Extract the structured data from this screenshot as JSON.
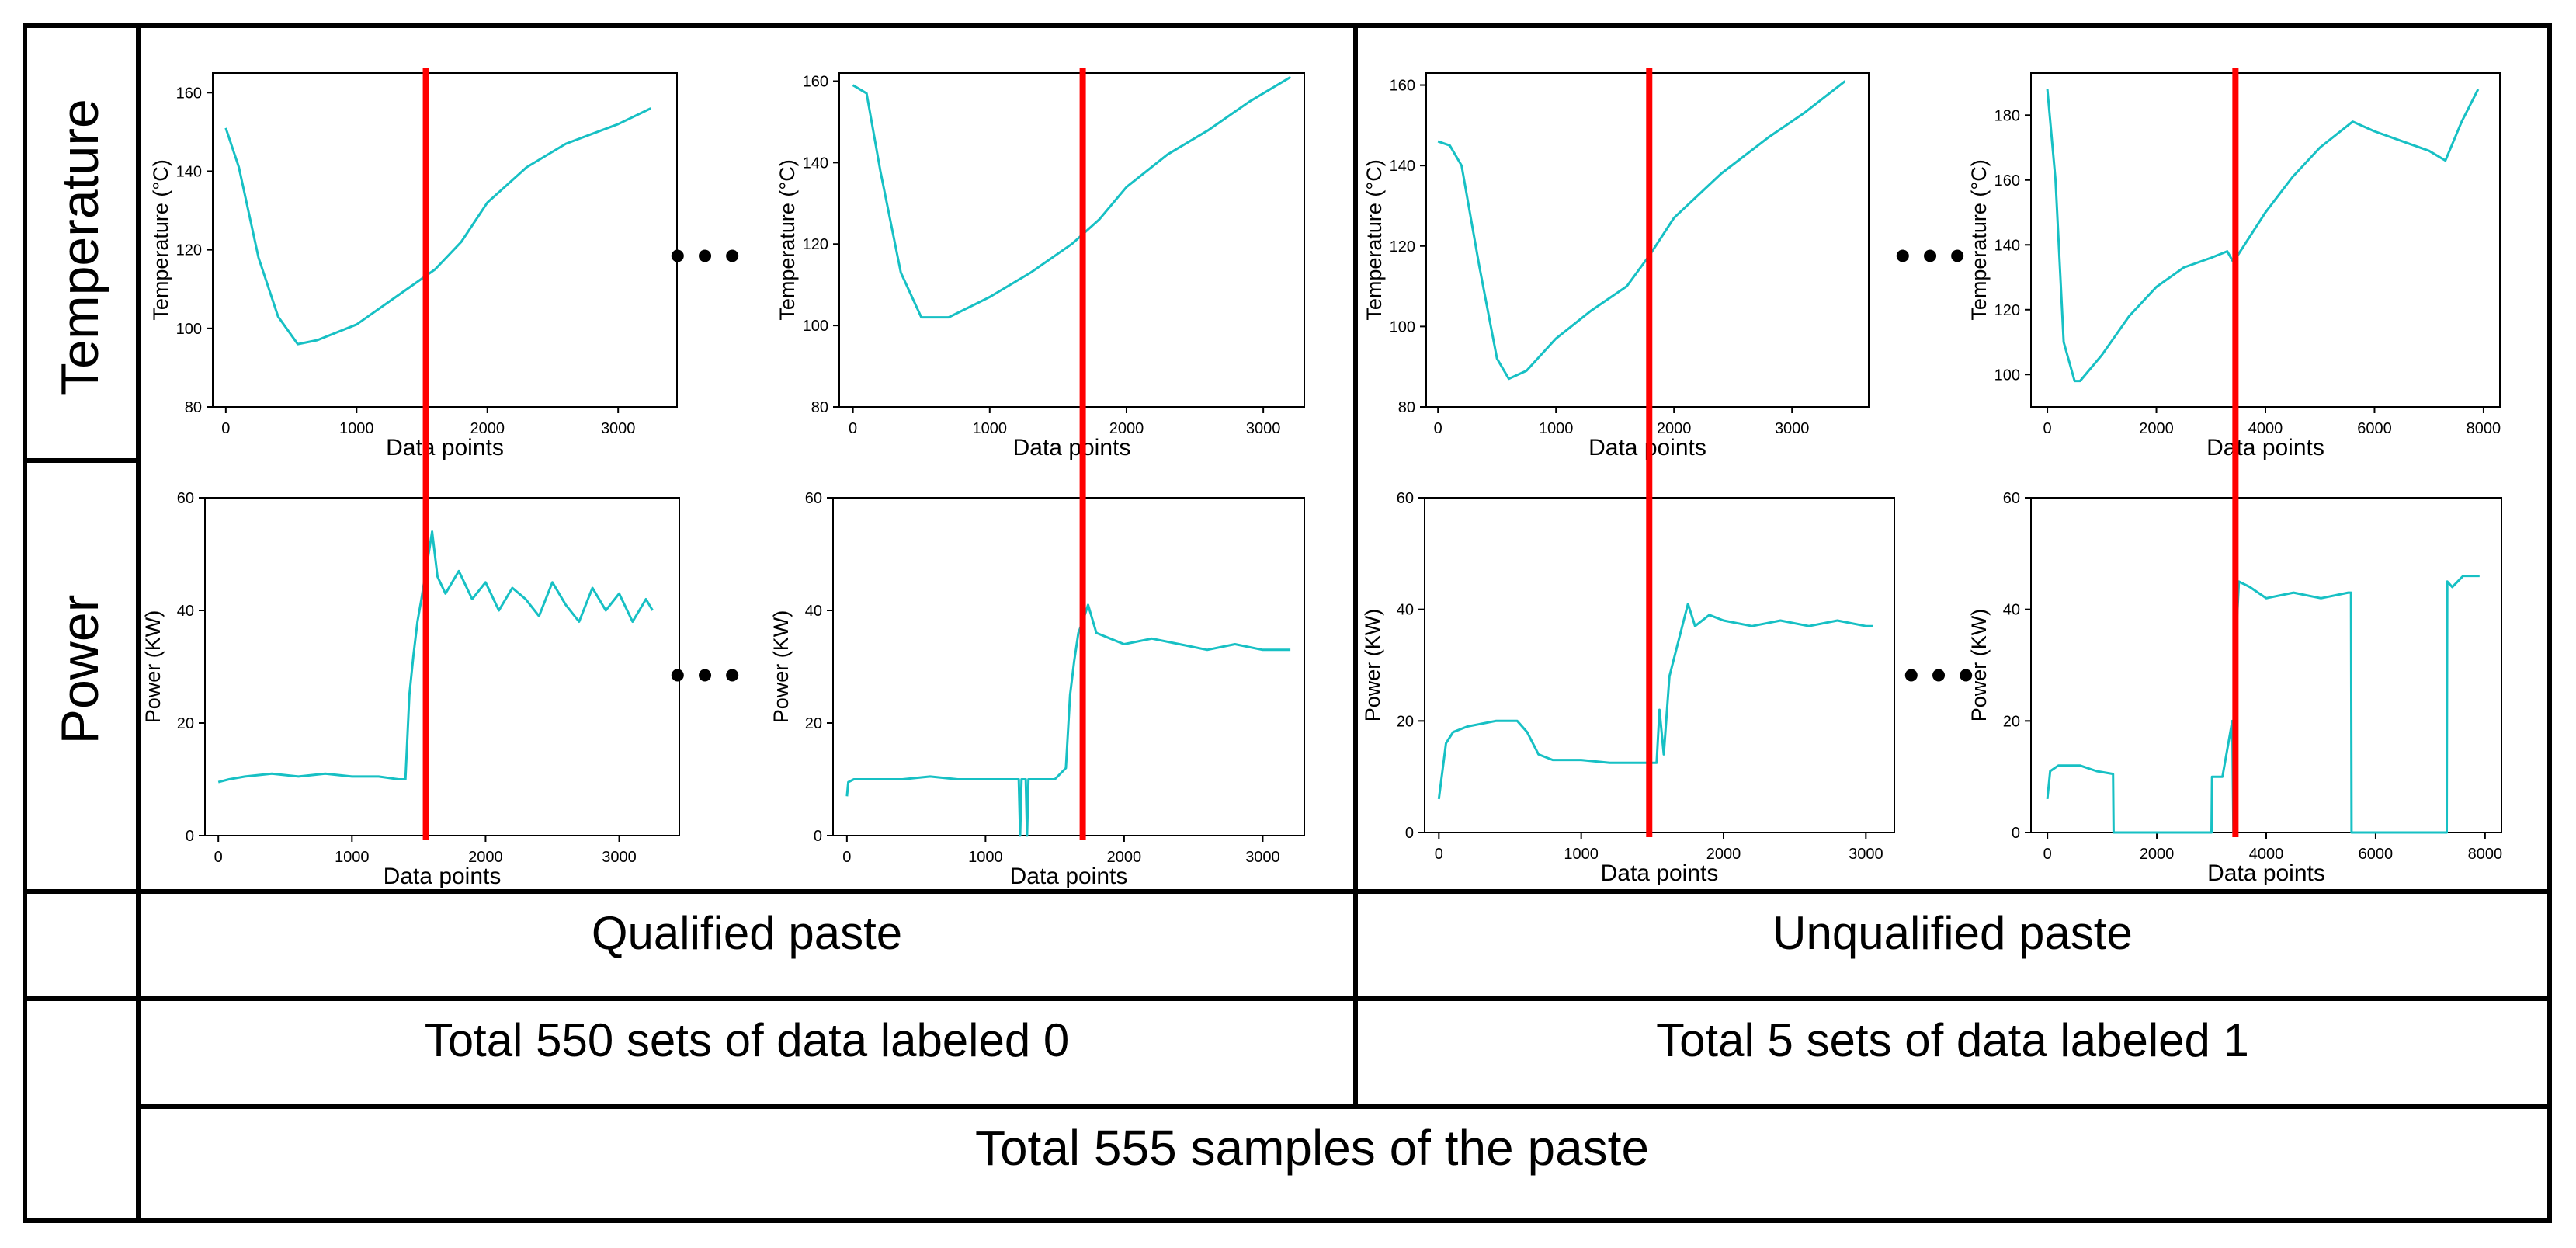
{
  "row_labels": {
    "temperature": "Temperature",
    "power": "Power"
  },
  "ellipsis": "• • •",
  "categories": {
    "qualified": "Qualified paste",
    "unqualified": "Unqualified paste"
  },
  "counts": {
    "qualified": "Total 550 sets of data labeled 0",
    "unqualified": "Total 5 sets of data labeled 1"
  },
  "total": "Total 555 samples of the paste",
  "colors": {
    "series": "#17c0c4",
    "marker": "#ff0000",
    "frame": "#000000"
  },
  "chart_data": [
    {
      "id": "q1-temp",
      "type": "line",
      "group": "Qualified paste",
      "xlabel": "Data points",
      "ylabel": "Temperature (°C)",
      "xlim": [
        -100,
        3450
      ],
      "ylim": [
        80,
        165
      ],
      "xticks": [
        0,
        1000,
        2000,
        3000
      ],
      "yticks": [
        80,
        100,
        120,
        140,
        160
      ],
      "marker_x": 1530,
      "x": [
        0,
        100,
        250,
        400,
        550,
        700,
        1000,
        1300,
        1600,
        1800,
        2000,
        2300,
        2600,
        3000,
        3250
      ],
      "y": [
        151,
        141,
        118,
        103,
        96,
        97,
        101,
        108,
        115,
        122,
        132,
        141,
        147,
        152,
        156
      ]
    },
    {
      "id": "q2-temp",
      "type": "line",
      "group": "Qualified paste",
      "xlabel": "Data points",
      "ylabel": "Temperature (°C)",
      "xlim": [
        -100,
        3300
      ],
      "ylim": [
        80,
        162
      ],
      "xticks": [
        0,
        1000,
        2000,
        3000
      ],
      "yticks": [
        80,
        100,
        120,
        140,
        160
      ],
      "marker_x": 1680,
      "x": [
        0,
        100,
        200,
        350,
        500,
        700,
        1000,
        1300,
        1600,
        1800,
        2000,
        2300,
        2600,
        2900,
        3200
      ],
      "y": [
        159,
        157,
        138,
        113,
        102,
        102,
        107,
        113,
        120,
        126,
        134,
        142,
        148,
        155,
        161
      ]
    },
    {
      "id": "u1-temp",
      "type": "line",
      "group": "Unqualified paste",
      "xlabel": "Data points",
      "ylabel": "Temperature (°C)",
      "xlim": [
        -100,
        3650
      ],
      "ylim": [
        80,
        163
      ],
      "xticks": [
        0,
        1000,
        2000,
        3000
      ],
      "yticks": [
        80,
        100,
        120,
        140,
        160
      ],
      "marker_x": 1790,
      "x": [
        0,
        100,
        200,
        350,
        500,
        600,
        750,
        1000,
        1300,
        1600,
        1800,
        2000,
        2400,
        2800,
        3100,
        3450
      ],
      "y": [
        146,
        145,
        140,
        115,
        92,
        87,
        89,
        97,
        104,
        110,
        118,
        127,
        138,
        147,
        153,
        161
      ]
    },
    {
      "id": "u2-temp",
      "type": "line",
      "group": "Unqualified paste",
      "xlabel": "Data points",
      "ylabel": "Temperature (°C)",
      "xlim": [
        -300,
        8300
      ],
      "ylim": [
        90,
        193
      ],
      "xticks": [
        0,
        2000,
        4000,
        6000,
        8000
      ],
      "yticks": [
        100,
        120,
        140,
        160,
        180
      ],
      "marker_x": 3450,
      "x": [
        0,
        150,
        300,
        500,
        600,
        1000,
        1500,
        2000,
        2500,
        3000,
        3300,
        3400,
        3500,
        4000,
        4500,
        5000,
        5600,
        6000,
        6500,
        7000,
        7300,
        7600,
        7900
      ],
      "y": [
        188,
        160,
        110,
        98,
        98,
        106,
        118,
        127,
        133,
        136,
        138,
        135,
        137,
        150,
        161,
        170,
        178,
        175,
        172,
        169,
        166,
        178,
        188
      ]
    },
    {
      "id": "q1-power",
      "type": "line",
      "group": "Qualified paste",
      "xlabel": "Data points",
      "ylabel": "Power (KW)",
      "xlim": [
        -100,
        3450
      ],
      "ylim": [
        0,
        60
      ],
      "xticks": [
        0,
        1000,
        2000,
        3000
      ],
      "yticks": [
        0,
        20,
        40,
        60
      ],
      "marker_x": 1530,
      "x": [
        0,
        80,
        200,
        400,
        600,
        800,
        1000,
        1200,
        1350,
        1400,
        1430,
        1460,
        1490,
        1520,
        1560,
        1600,
        1640,
        1700,
        1800,
        1900,
        2000,
        2100,
        2200,
        2300,
        2400,
        2500,
        2600,
        2700,
        2800,
        2900,
        3000,
        3100,
        3200,
        3250
      ],
      "y": [
        9.5,
        10,
        10.5,
        11,
        10.5,
        11,
        10.5,
        10.5,
        10,
        10,
        25,
        32,
        38,
        42,
        48,
        54,
        46,
        43,
        47,
        42,
        45,
        40,
        44,
        42,
        39,
        45,
        41,
        38,
        44,
        40,
        43,
        38,
        42,
        40
      ]
    },
    {
      "id": "q2-power",
      "type": "line",
      "group": "Qualified paste",
      "xlabel": "Data points",
      "ylabel": "Power (KW)",
      "xlim": [
        -100,
        3300
      ],
      "ylim": [
        0,
        60
      ],
      "xticks": [
        0,
        1000,
        2000,
        3000
      ],
      "yticks": [
        0,
        20,
        40,
        60
      ],
      "marker_x": 1680,
      "x": [
        0,
        10,
        50,
        200,
        400,
        600,
        800,
        1000,
        1200,
        1240,
        1250,
        1260,
        1290,
        1300,
        1310,
        1400,
        1500,
        1580,
        1610,
        1640,
        1670,
        1700,
        1740,
        1800,
        1900,
        2000,
        2200,
        2400,
        2600,
        2800,
        3000,
        3200
      ],
      "y": [
        7,
        9.5,
        10,
        10,
        10,
        10.5,
        10,
        10,
        10,
        10,
        0,
        10,
        10,
        0,
        10,
        10,
        10,
        12,
        25,
        31,
        36,
        38,
        41,
        36,
        35,
        34,
        35,
        34,
        33,
        34,
        33,
        33
      ]
    },
    {
      "id": "u1-power",
      "type": "line",
      "group": "Unqualified paste",
      "xlabel": "Data points",
      "ylabel": "Power (KW)",
      "xlim": [
        -100,
        3200
      ],
      "ylim": [
        0,
        60
      ],
      "xticks": [
        0,
        1000,
        2000,
        3000
      ],
      "yticks": [
        0,
        20,
        40,
        60
      ],
      "marker_x": 1590,
      "x": [
        0,
        50,
        100,
        200,
        400,
        550,
        620,
        700,
        800,
        1000,
        1200,
        1400,
        1530,
        1550,
        1580,
        1620,
        1700,
        1750,
        1800,
        1900,
        2000,
        2200,
        2400,
        2600,
        2800,
        3000,
        3050
      ],
      "y": [
        6,
        16,
        18,
        19,
        20,
        20,
        18,
        14,
        13,
        13,
        12.5,
        12.5,
        12.5,
        22,
        14,
        28,
        36,
        41,
        37,
        39,
        38,
        37,
        38,
        37,
        38,
        37,
        37
      ]
    },
    {
      "id": "u2-power",
      "type": "line",
      "group": "Unqualified paste",
      "xlabel": "Data points",
      "ylabel": "Power (KW)",
      "xlim": [
        -300,
        8300
      ],
      "ylim": [
        0,
        60
      ],
      "xticks": [
        0,
        2000,
        4000,
        6000,
        8000
      ],
      "yticks": [
        0,
        20,
        40,
        60
      ],
      "marker_x": 3450,
      "x": [
        0,
        50,
        200,
        400,
        600,
        900,
        1200,
        1210,
        3000,
        3010,
        3050,
        3200,
        3380,
        3400,
        3450,
        3500,
        3700,
        4000,
        4500,
        5000,
        5500,
        5550,
        5560,
        7300,
        7310,
        7400,
        7600,
        7900
      ],
      "y": [
        6,
        11,
        12,
        12,
        12,
        11,
        10.5,
        0,
        0,
        10,
        10,
        10,
        20,
        0,
        35,
        45,
        44,
        42,
        43,
        42,
        43,
        43,
        0,
        0,
        45,
        44,
        46,
        46
      ]
    }
  ]
}
